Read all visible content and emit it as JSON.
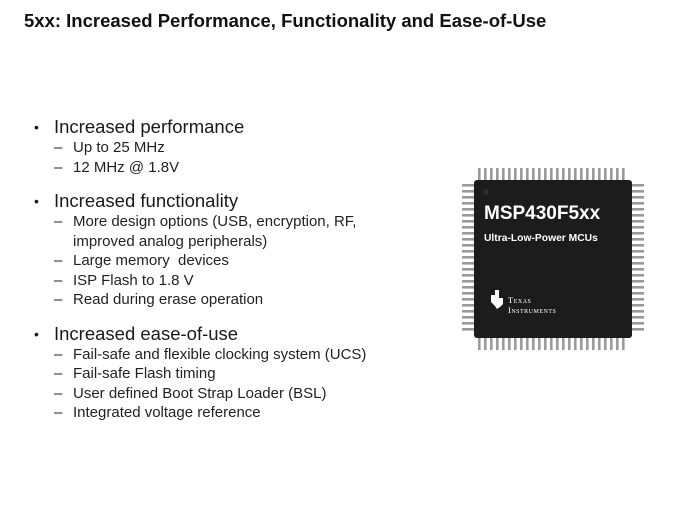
{
  "slide": {
    "title": "5xx: Increased Performance, Functionality and Ease-of-Use",
    "sections": [
      {
        "heading": "Increased performance",
        "items": [
          "Up to 25 MHz",
          "12 MHz @ 1.8V"
        ]
      },
      {
        "heading": "Increased functionality",
        "items": [
          "More design options (USB, encryption, RF,",
          "improved analog peripherals)",
          "Large memory  devices",
          "ISP Flash to 1.8 V",
          "Read during erase operation"
        ]
      },
      {
        "heading": "Increased ease-of-use",
        "items": [
          "Fail-safe and flexible clocking system (UCS)",
          "Fail-safe Flash timing",
          "User defined Boot Strap Loader (BSL)",
          "Integrated voltage reference"
        ]
      }
    ]
  },
  "chip": {
    "part_number": "MSP430F5xx",
    "subtitle": "Ultra-Low-Power MCUs",
    "brand_line1": "Texas",
    "brand_line2": "Instruments",
    "body_color": "#1c1c1c",
    "pin_color": "#9a9a9a"
  }
}
